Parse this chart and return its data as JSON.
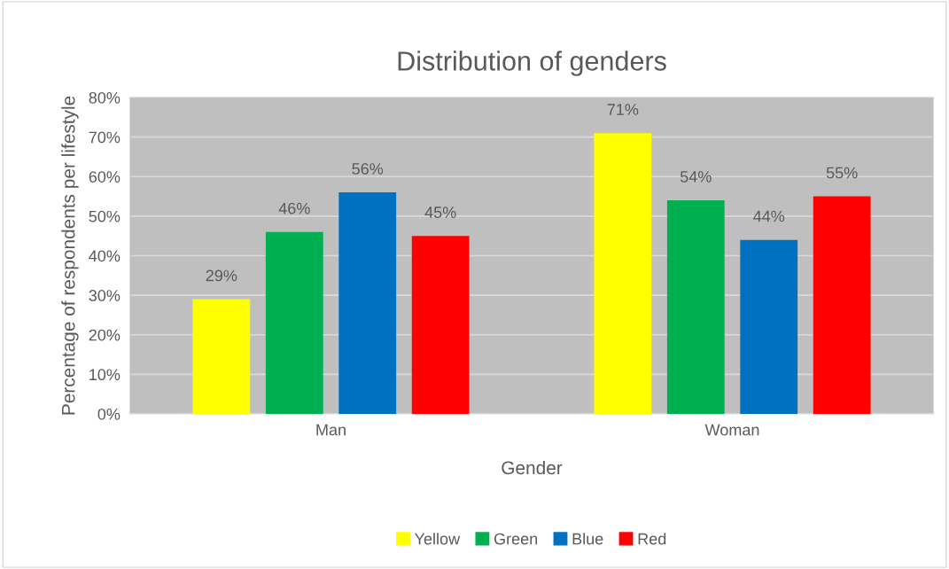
{
  "chart_data": {
    "type": "bar",
    "title": "Distribution of genders",
    "xlabel": "Gender",
    "ylabel": "Percentage of respondents per lifestyle",
    "categories": [
      "Man",
      "Woman"
    ],
    "series": [
      {
        "name": "Yellow",
        "color": "#ffff00",
        "values": [
          29,
          71
        ],
        "value_labels": [
          "29%",
          "71%"
        ]
      },
      {
        "name": "Green",
        "color": "#00b050",
        "values": [
          46,
          54
        ],
        "value_labels": [
          "46%",
          "54%"
        ]
      },
      {
        "name": "Blue",
        "color": "#0070c0",
        "values": [
          56,
          44
        ],
        "value_labels": [
          "56%",
          "44%"
        ]
      },
      {
        "name": "Red",
        "color": "#ff0000",
        "values": [
          45,
          55
        ],
        "value_labels": [
          "45%",
          "55%"
        ]
      }
    ],
    "ylim": [
      0,
      80
    ],
    "yticks": [
      {
        "value": 0,
        "label": "0%"
      },
      {
        "value": 10,
        "label": "10%"
      },
      {
        "value": 20,
        "label": "20%"
      },
      {
        "value": 30,
        "label": "30%"
      },
      {
        "value": 40,
        "label": "40%"
      },
      {
        "value": 50,
        "label": "50%"
      },
      {
        "value": 60,
        "label": "60%"
      },
      {
        "value": 70,
        "label": "70%"
      },
      {
        "value": 80,
        "label": "80%"
      }
    ],
    "grid": "y",
    "legend": "bottom"
  }
}
